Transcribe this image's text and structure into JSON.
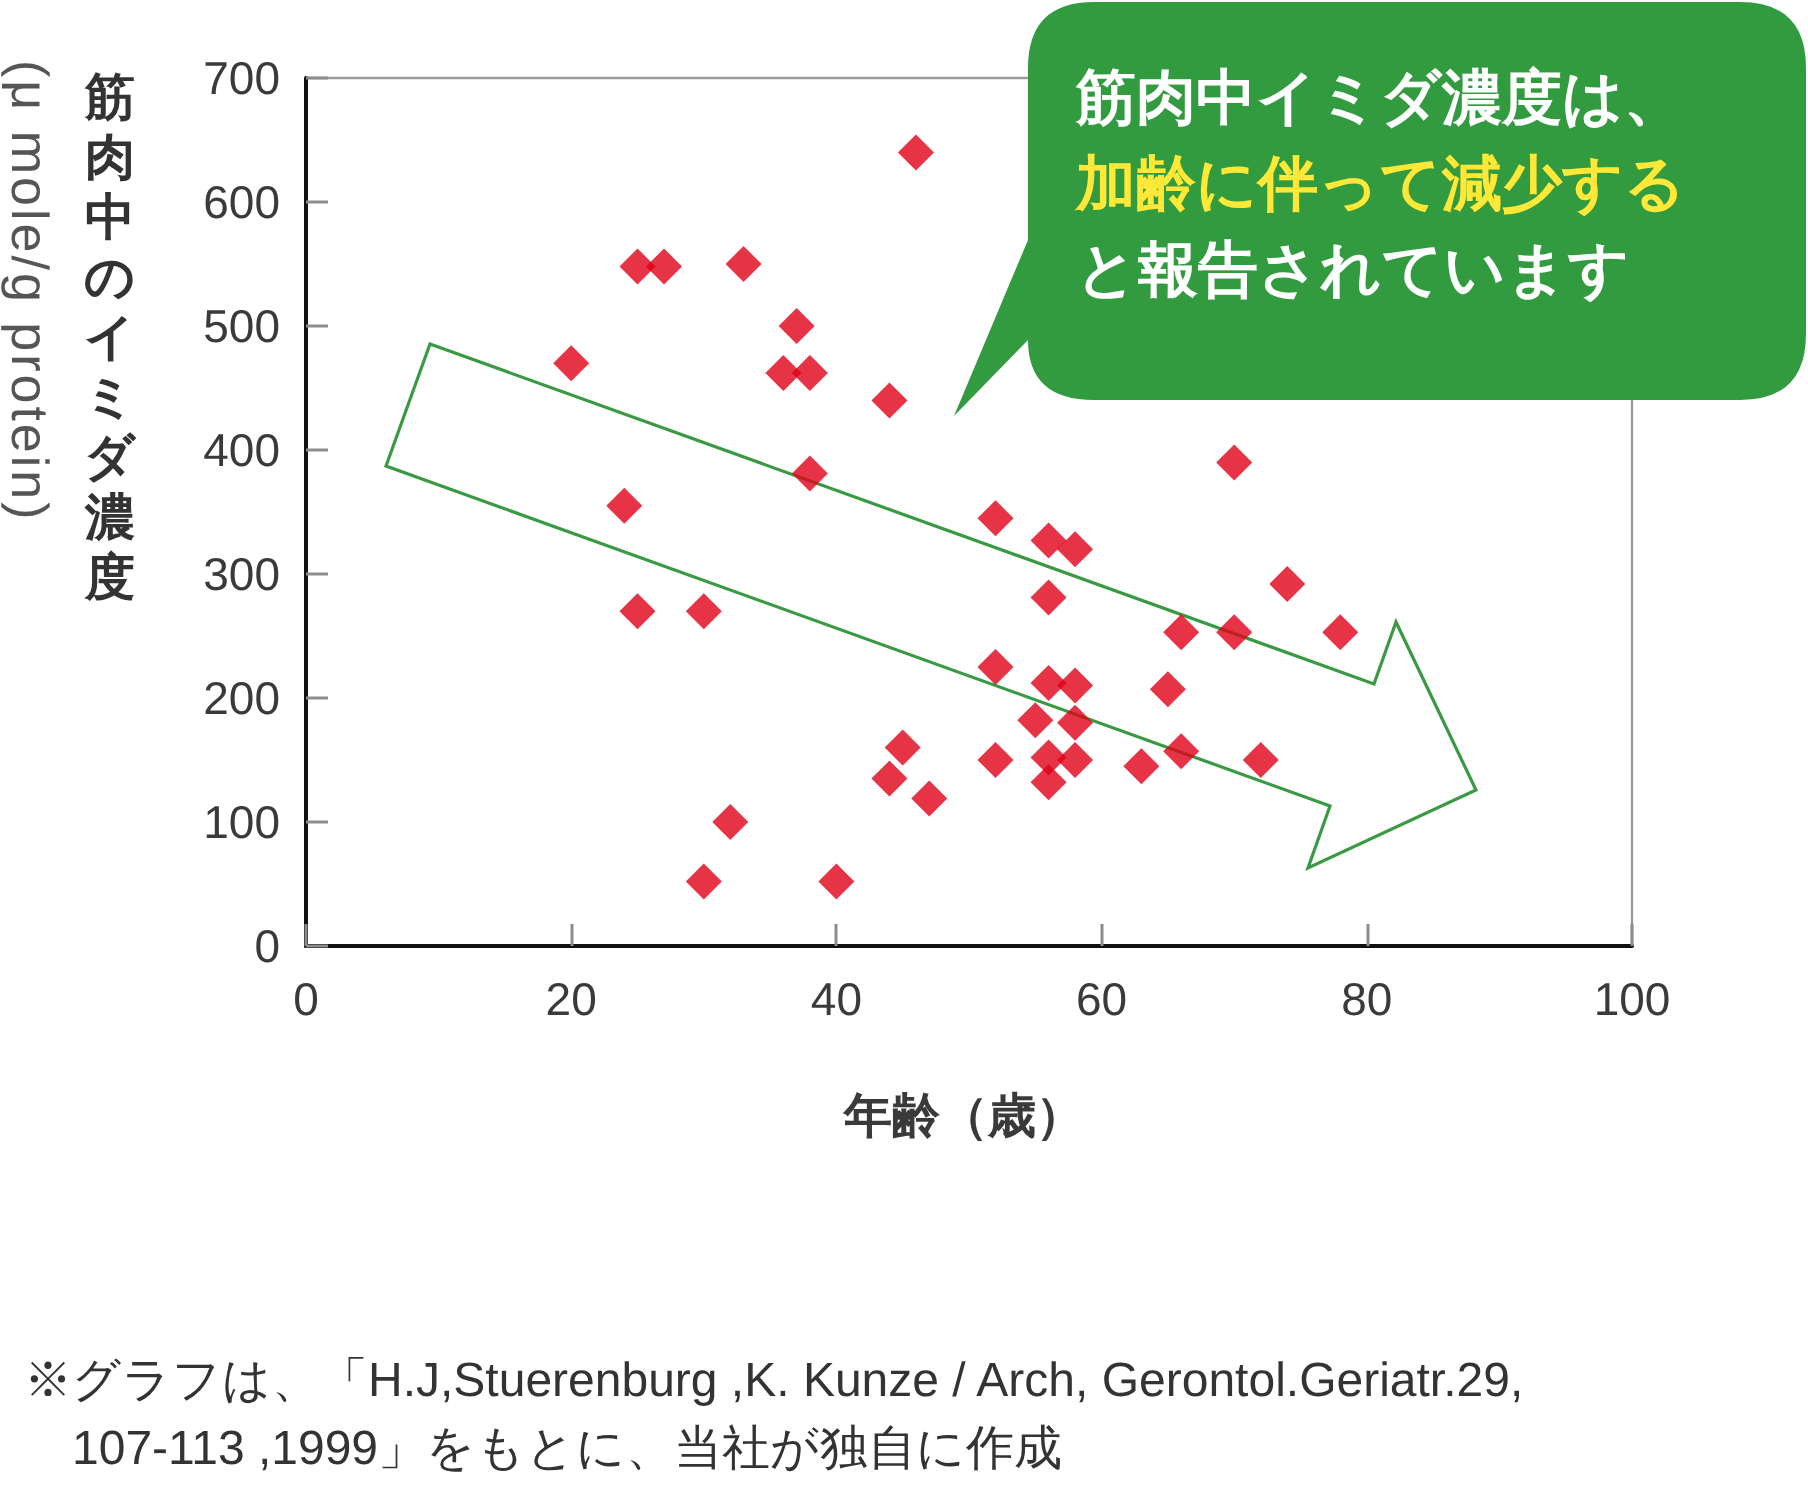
{
  "chart_data": {
    "type": "scatter",
    "xlabel": "年齢（歳）",
    "ylabel": "筋肉中のイミダ濃度\n(μ mole/g protein)",
    "x": [
      20,
      24,
      25,
      27,
      25,
      30,
      33,
      37,
      36,
      38,
      44,
      46,
      38,
      30,
      32,
      40,
      45,
      44,
      47,
      70,
      52,
      56,
      58,
      56,
      74,
      66,
      70,
      78,
      52,
      56,
      58,
      65,
      55,
      58,
      52,
      56,
      58,
      56,
      63,
      66,
      72
    ],
    "values": [
      470,
      355,
      548,
      548,
      270,
      270,
      550,
      500,
      462,
      462,
      440,
      640,
      381,
      52,
      100,
      52,
      160,
      135,
      119,
      390,
      345,
      327,
      320,
      281,
      292,
      253,
      253,
      253,
      225,
      212,
      210,
      207,
      182,
      180,
      150,
      152,
      150,
      132,
      145,
      157,
      150
    ],
    "color": "#e00016",
    "marker": "diamond",
    "grid": false,
    "xlim": [
      0,
      100
    ],
    "xticks": [
      0,
      20,
      40,
      60,
      80,
      100
    ],
    "ylim": [
      0,
      700
    ],
    "yticks": [
      0,
      100,
      200,
      300,
      400,
      500,
      600,
      700
    ],
    "annotations": [
      "筋肉中イミダ濃度は、",
      "加齢に伴って減少する",
      "と報告されています",
      "※グラフは、「H.J,Stuerenburg ,K. Kunze / Arch, Gerontol.Geriatr.29, 107-113 ,1999」をもとに、当社が独自に作成"
    ]
  }
}
